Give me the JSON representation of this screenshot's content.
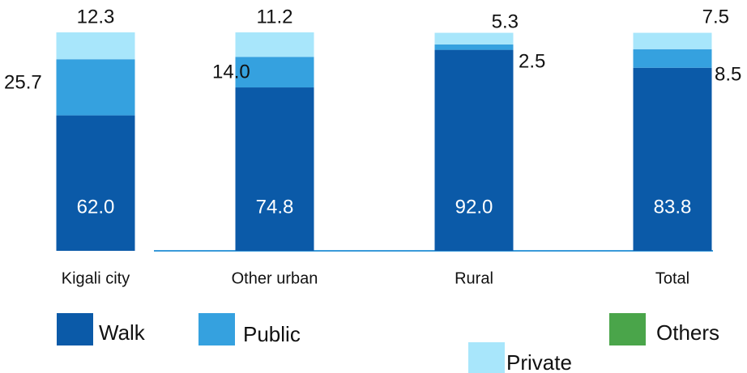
{
  "chart_data": {
    "type": "stacked_bar",
    "categories": [
      "Kigali city",
      "Other urban",
      "Rural",
      "Total"
    ],
    "series": [
      {
        "name": "Walk",
        "color": "#0b5aa8",
        "values": [
          62.0,
          74.8,
          92.0,
          83.8
        ],
        "value_labels": [
          "62.0",
          "74.8",
          "92.0",
          "83.8"
        ]
      },
      {
        "name": "Public",
        "color": "#35a1df",
        "values": [
          25.7,
          14.0,
          2.5,
          8.5
        ],
        "value_labels": [
          "25.7",
          "14.0",
          "2.5",
          "8.5"
        ]
      },
      {
        "name": "Private",
        "color": "#a8e6fb",
        "values": [
          12.3,
          11.2,
          5.3,
          7.5
        ],
        "value_labels": [
          "12.3",
          "11.2",
          "5.3",
          "7.5"
        ]
      },
      {
        "name": "Others",
        "color": "#4aa54a",
        "values": [
          null,
          null,
          null,
          null
        ]
      }
    ],
    "ylim": [
      0,
      100
    ]
  }
}
